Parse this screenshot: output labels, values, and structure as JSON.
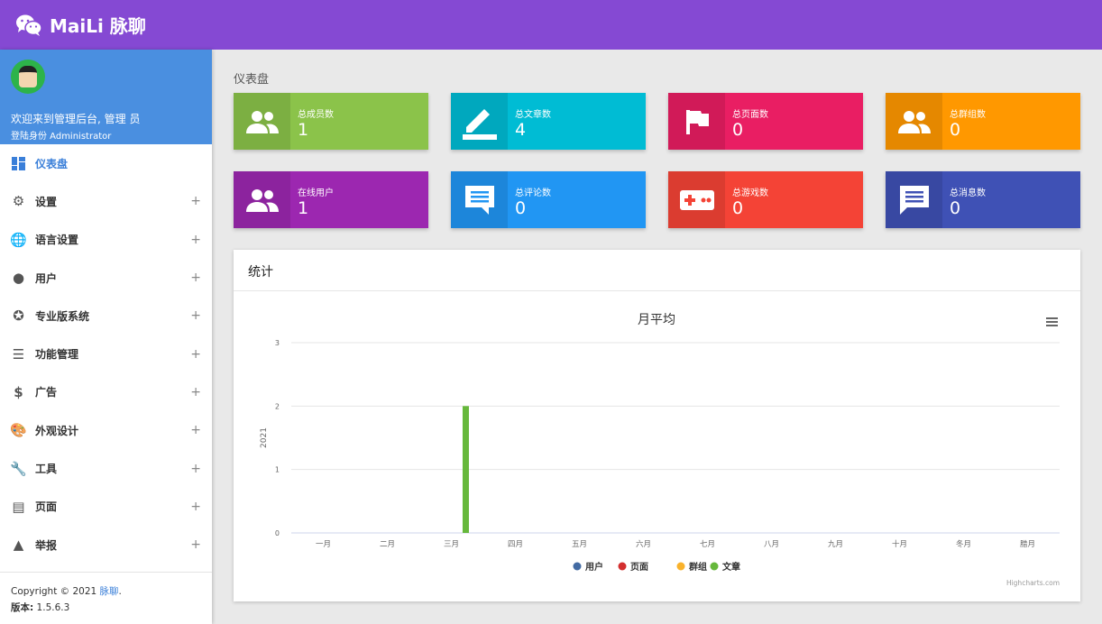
{
  "header": {
    "brand": "MaiLi 脉聊",
    "logo_icon": "wechat-icon"
  },
  "profile": {
    "welcome": "欢迎来到管理后台, 管理 员",
    "role": "登陆身份 Administrator"
  },
  "sidebar": {
    "items": [
      {
        "label": "仪表盘",
        "icon": "dashboard-icon",
        "active": true
      },
      {
        "label": "设置",
        "icon": "gear-icon"
      },
      {
        "label": "语言设置",
        "icon": "globe-icon"
      },
      {
        "label": "用户",
        "icon": "user-icon"
      },
      {
        "label": "专业版系统",
        "icon": "star-icon"
      },
      {
        "label": "功能管理",
        "icon": "storage-icon"
      },
      {
        "label": "广告",
        "icon": "dollar-icon"
      },
      {
        "label": "外观设计",
        "icon": "palette-icon"
      },
      {
        "label": "工具",
        "icon": "wrench-icon"
      },
      {
        "label": "页面",
        "icon": "file-icon"
      },
      {
        "label": "举报",
        "icon": "warning-icon"
      }
    ],
    "plus": "+"
  },
  "footer": {
    "copyright": "Copyright © 2021 ",
    "link": "脉聊",
    "dot": ".",
    "version_label": "版本:",
    "version": "1.5.6.3"
  },
  "breadcrumb": "仪表盘",
  "cards": [
    {
      "title": "总成员数",
      "value": "1",
      "color": "#8bc34a",
      "icon": "users-icon"
    },
    {
      "title": "总文章数",
      "value": "4",
      "color": "#00bcd4",
      "icon": "edit-icon"
    },
    {
      "title": "总页面数",
      "value": "0",
      "color": "#e91e63",
      "icon": "flag-icon"
    },
    {
      "title": "总群组数",
      "value": "0",
      "color": "#ff9800",
      "icon": "group-icon"
    },
    {
      "title": "在线用户",
      "value": "1",
      "color": "#9c27b0",
      "icon": "users-icon"
    },
    {
      "title": "总评论数",
      "value": "0",
      "color": "#2196f3",
      "icon": "comment-icon"
    },
    {
      "title": "总游戏数",
      "value": "0",
      "color": "#f44336",
      "icon": "gamepad-icon"
    },
    {
      "title": "总消息数",
      "value": "0",
      "color": "#3f51b5",
      "icon": "message-icon"
    }
  ],
  "panel": {
    "title": "统计"
  },
  "chart_data": {
    "type": "bar",
    "title": "月平均",
    "ylabel": "2021",
    "ylim": [
      0,
      3
    ],
    "yticks": [
      0,
      1,
      2,
      3
    ],
    "grid": true,
    "legend": "bottom",
    "categories": [
      "一月",
      "二月",
      "三月",
      "四月",
      "五月",
      "六月",
      "七月",
      "八月",
      "九月",
      "十月",
      "冬月",
      "腊月"
    ],
    "series": [
      {
        "name": "用户",
        "color": "#436ba3",
        "values": [
          0,
          0,
          0,
          0,
          0,
          0,
          0,
          0,
          0,
          0,
          0,
          0
        ]
      },
      {
        "name": "页面",
        "color": "#d32f2f",
        "values": [
          0,
          0,
          0,
          0,
          0,
          0,
          0,
          0,
          0,
          0,
          0,
          0
        ]
      },
      {
        "name": "群组",
        "color": "#f9b22b",
        "values": [
          0,
          0,
          0,
          0,
          0,
          0,
          0,
          0,
          0,
          0,
          0,
          0
        ]
      },
      {
        "name": "文章",
        "color": "#66b83b",
        "values": [
          0,
          0,
          2,
          0,
          0,
          0,
          0,
          0,
          0,
          0,
          0,
          0
        ]
      }
    ],
    "credits": "Highcharts.com"
  }
}
